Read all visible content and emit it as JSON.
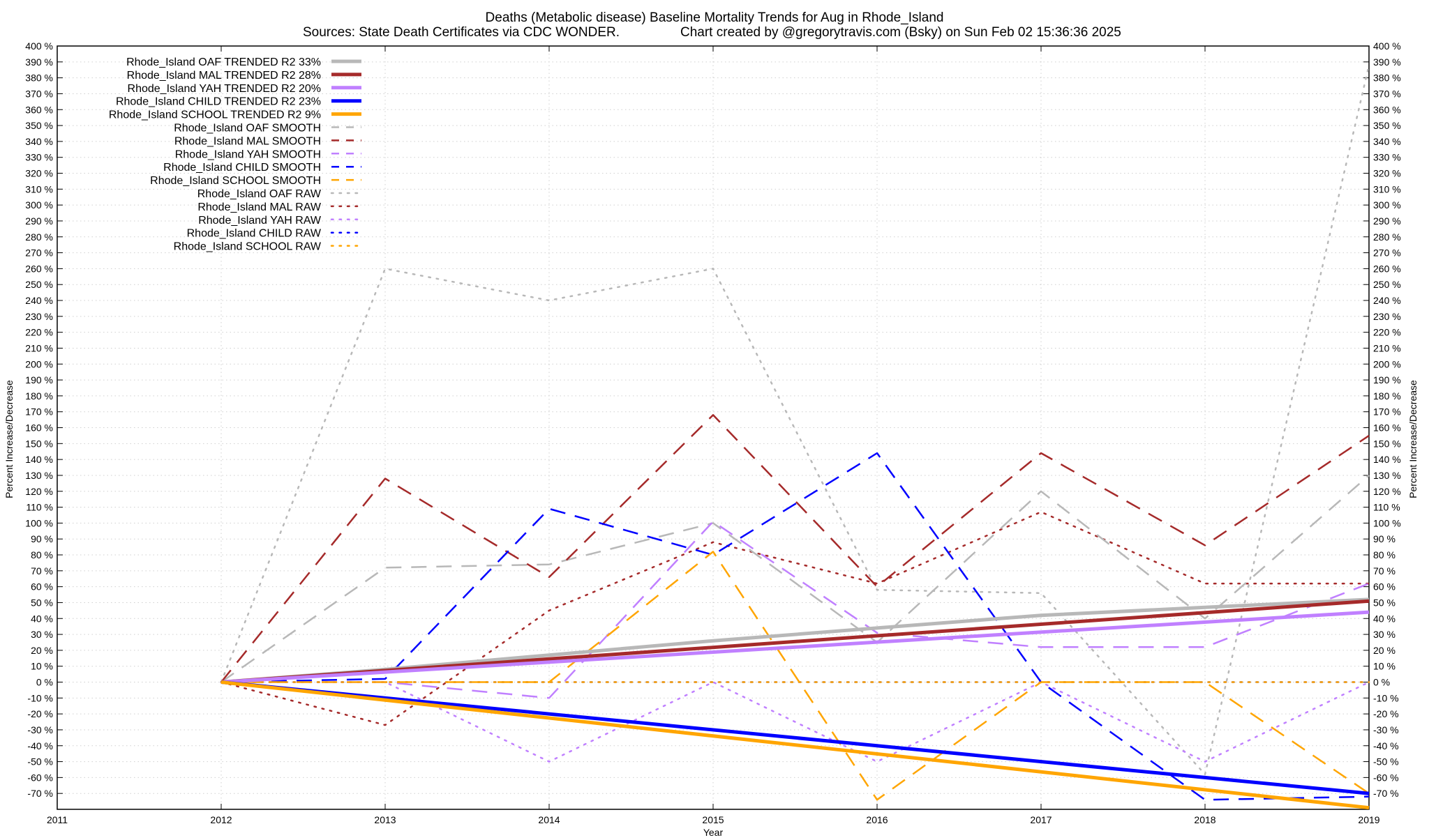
{
  "chart_data": {
    "type": "line",
    "title": "Deaths (Metabolic disease)  Baseline Mortality Trends for Aug in Rhode_Island",
    "subtitle_left": "Sources: State Death Certificates via CDC WONDER.",
    "subtitle_right": "Chart created by @gregorytravis.com (Bsky) on Sun Feb 02 15:36:36 2025",
    "xlabel": "Year",
    "ylabel_left": "Percent Increase/Decrease",
    "ylabel_right": "Percent Increase/Decrease",
    "xlim": [
      2011,
      2019
    ],
    "ylim": [
      -80,
      400
    ],
    "x_ticks": [
      2011,
      2012,
      2013,
      2014,
      2015,
      2016,
      2017,
      2018,
      2019
    ],
    "y_ticks": [
      400,
      390,
      380,
      370,
      360,
      350,
      340,
      330,
      320,
      310,
      300,
      290,
      280,
      270,
      260,
      250,
      240,
      230,
      220,
      210,
      200,
      190,
      180,
      170,
      160,
      150,
      140,
      130,
      120,
      110,
      100,
      90,
      80,
      70,
      60,
      50,
      40,
      30,
      20,
      10,
      0,
      -10,
      -20,
      -30,
      -40,
      -50,
      -60,
      -70
    ],
    "y_tick_suffix": " %",
    "grid": true,
    "legend_position": "top-left",
    "series": [
      {
        "name": "Rhode_Island OAF TRENDED R2  33%",
        "style": "solid",
        "color": "#b8b8b8",
        "width": 5,
        "x": [
          2012,
          2013,
          2014,
          2015,
          2016,
          2017,
          2018,
          2019
        ],
        "y": [
          0,
          8,
          17,
          26,
          34,
          42,
          47,
          52
        ]
      },
      {
        "name": "Rhode_Island MAL TRENDED R2  28%",
        "style": "solid",
        "color": "#a52a2a",
        "width": 5,
        "x": [
          2012,
          2019
        ],
        "y": [
          0,
          51
        ]
      },
      {
        "name": "Rhode_Island YAH TRENDED R2  20%",
        "style": "solid",
        "color": "#c080ff",
        "width": 5,
        "x": [
          2012,
          2019
        ],
        "y": [
          0,
          44
        ]
      },
      {
        "name": "Rhode_Island CHILD TRENDED R2  23%",
        "style": "solid",
        "color": "#0000ff",
        "width": 5,
        "x": [
          2012,
          2019
        ],
        "y": [
          0,
          -70
        ]
      },
      {
        "name": "Rhode_Island SCHOOL TRENDED R2  9%",
        "style": "solid",
        "color": "#ffa500",
        "width": 5,
        "x": [
          2012,
          2019
        ],
        "y": [
          0,
          -79
        ]
      },
      {
        "name": "Rhode_Island OAF SMOOTH",
        "style": "dashed",
        "color": "#b8b8b8",
        "width": 2.5,
        "x": [
          2012,
          2013,
          2014,
          2015,
          2016,
          2017,
          2018,
          2019
        ],
        "y": [
          0,
          72,
          74,
          100,
          25,
          120,
          40,
          130
        ]
      },
      {
        "name": "Rhode_Island MAL SMOOTH",
        "style": "dashed",
        "color": "#a52a2a",
        "width": 2.5,
        "x": [
          2012,
          2013,
          2014,
          2015,
          2016,
          2017,
          2018,
          2019
        ],
        "y": [
          0,
          128,
          66,
          168,
          60,
          144,
          86,
          155
        ]
      },
      {
        "name": "Rhode_Island YAH SMOOTH",
        "style": "dashed",
        "color": "#c080ff",
        "width": 2.5,
        "x": [
          2012,
          2013,
          2014,
          2015,
          2016,
          2017,
          2018,
          2019
        ],
        "y": [
          0,
          0,
          -10,
          101,
          31,
          22,
          22,
          62
        ]
      },
      {
        "name": "Rhode_Island CHILD SMOOTH",
        "style": "dashed",
        "color": "#0000ff",
        "width": 2.5,
        "x": [
          2012,
          2013,
          2014,
          2015,
          2016,
          2017,
          2018,
          2019
        ],
        "y": [
          0,
          2,
          109,
          80,
          144,
          0,
          -74,
          -72
        ]
      },
      {
        "name": "Rhode_Island SCHOOL SMOOTH",
        "style": "dashed",
        "color": "#ffa500",
        "width": 2.5,
        "x": [
          2012,
          2013,
          2014,
          2015,
          2016,
          2017,
          2018,
          2019
        ],
        "y": [
          0,
          0,
          0,
          82,
          -74,
          0,
          0,
          -70
        ]
      },
      {
        "name": "Rhode_Island OAF RAW",
        "style": "dotted",
        "color": "#b8b8b8",
        "width": 2.5,
        "x": [
          2012,
          2013,
          2014,
          2015,
          2016,
          2017,
          2018,
          2019
        ],
        "y": [
          0,
          260,
          240,
          260,
          58,
          56,
          -58,
          388
        ]
      },
      {
        "name": "Rhode_Island MAL RAW",
        "style": "dotted",
        "color": "#a52a2a",
        "width": 2.5,
        "x": [
          2012,
          2013,
          2014,
          2015,
          2016,
          2017,
          2018,
          2019
        ],
        "y": [
          0,
          -27,
          45,
          88,
          62,
          107,
          62,
          62
        ]
      },
      {
        "name": "Rhode_Island YAH RAW",
        "style": "dotted",
        "color": "#c080ff",
        "width": 2.5,
        "x": [
          2012,
          2013,
          2014,
          2015,
          2016,
          2017,
          2018,
          2019
        ],
        "y": [
          0,
          0,
          -50,
          0,
          -50,
          0,
          -50,
          0
        ]
      },
      {
        "name": "Rhode_Island CHILD RAW",
        "style": "dotted",
        "color": "#0000ff",
        "width": 2.5,
        "x": [
          2012,
          2013,
          2014,
          2015,
          2016,
          2017,
          2018,
          2019
        ],
        "y": [
          0,
          0,
          0,
          0,
          0,
          0,
          0,
          0
        ]
      },
      {
        "name": "Rhode_Island SCHOOL RAW",
        "style": "dotted",
        "color": "#ffa500",
        "width": 2.5,
        "x": [
          2012,
          2019
        ],
        "y": [
          0,
          0
        ]
      }
    ]
  }
}
